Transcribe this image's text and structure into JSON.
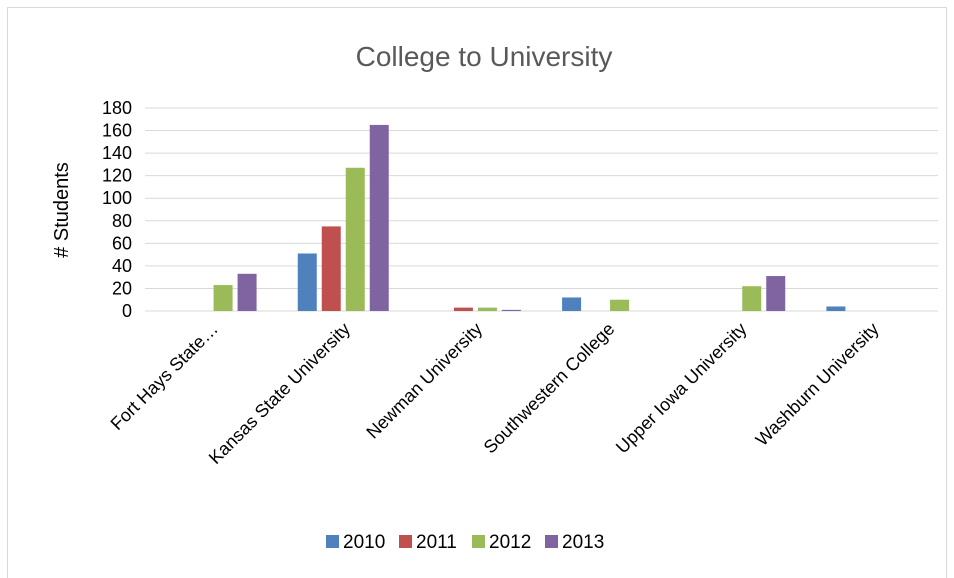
{
  "chart_data": {
    "type": "bar",
    "title": "College to University",
    "ylabel": "# Students",
    "xlabel": "",
    "ylim": [
      0,
      180
    ],
    "yticks": [
      0,
      20,
      40,
      60,
      80,
      100,
      120,
      140,
      160,
      180
    ],
    "grid": true,
    "legend_position": "bottom",
    "categories": [
      "Fort Hays State…",
      "Kansas State University",
      "Newman University",
      "Southwestern College",
      "Upper Iowa University",
      "Washburn University"
    ],
    "series": [
      {
        "name": "2010",
        "color": "#4f81bd",
        "values": [
          0,
          51,
          0,
          12,
          0,
          4
        ]
      },
      {
        "name": "2011",
        "color": "#c0504d",
        "values": [
          0,
          75,
          3,
          0,
          0,
          0
        ]
      },
      {
        "name": "2012",
        "color": "#9bbb59",
        "values": [
          23,
          127,
          3,
          10,
          22,
          0
        ]
      },
      {
        "name": "2013",
        "color": "#8064a2",
        "values": [
          33,
          165,
          1,
          0,
          31,
          0
        ]
      }
    ]
  }
}
